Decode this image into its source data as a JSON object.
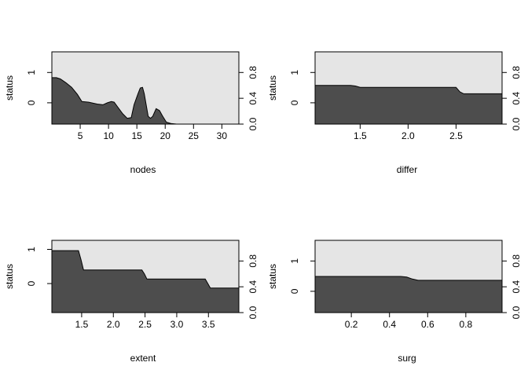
{
  "colors": {
    "background": "#ffffff",
    "panel_fill": "#e5e5e5",
    "area_fill": "#4d4d4d",
    "axis": "#000000"
  },
  "chart_data": [
    {
      "type": "area",
      "xlabel": "nodes",
      "ylabel": "status",
      "xlim": [
        0,
        33
      ],
      "xticks": [
        5,
        10,
        15,
        20,
        25,
        30
      ],
      "ylim": [
        0,
        1.12
      ],
      "left_ticks": [
        0,
        1
      ],
      "left_tick_values": [
        0.33,
        0.8
      ],
      "right_ticks": [
        0.0,
        0.4,
        0.8
      ],
      "x": [
        0,
        0.8,
        1.5,
        2.5,
        3.5,
        4.5,
        5.3,
        6.5,
        8,
        9,
        9.8,
        10.5,
        11,
        11.5,
        12.5,
        13.3,
        14,
        14.5,
        15.2,
        15.6,
        16,
        16.3,
        17,
        17.4,
        17.8,
        18.4,
        19,
        19.5,
        20.2,
        21,
        22,
        33
      ],
      "y": [
        0.72,
        0.72,
        0.7,
        0.64,
        0.57,
        0.46,
        0.35,
        0.34,
        0.31,
        0.3,
        0.33,
        0.35,
        0.34,
        0.28,
        0.16,
        0.09,
        0.1,
        0.3,
        0.47,
        0.56,
        0.57,
        0.47,
        0.12,
        0.09,
        0.12,
        0.24,
        0.21,
        0.13,
        0.03,
        0.01,
        0,
        0
      ]
    },
    {
      "type": "area",
      "xlabel": "differ",
      "ylabel": "status",
      "xlim": [
        1.03,
        2.98
      ],
      "xticks": [
        1.5,
        2.0,
        2.5
      ],
      "ylim": [
        0,
        1.12
      ],
      "left_ticks": [
        0,
        1
      ],
      "left_tick_values": [
        0.33,
        0.8
      ],
      "right_ticks": [
        0.0,
        0.4,
        0.8
      ],
      "x": [
        1.03,
        1.4,
        1.45,
        1.5,
        2.5,
        2.54,
        2.58,
        2.98
      ],
      "y": [
        0.6,
        0.6,
        0.59,
        0.57,
        0.57,
        0.5,
        0.47,
        0.47
      ]
    },
    {
      "type": "area",
      "xlabel": "extent",
      "ylabel": "status",
      "xlim": [
        1.03,
        3.98
      ],
      "xticks": [
        1.5,
        2.0,
        2.5,
        3.0,
        3.5
      ],
      "ylim": [
        0,
        1.12
      ],
      "left_ticks": [
        0,
        1
      ],
      "left_tick_values": [
        0.45,
        0.98
      ],
      "right_ticks": [
        0.0,
        0.4,
        0.8
      ],
      "x": [
        1.03,
        1.45,
        1.49,
        1.53,
        2.45,
        2.49,
        2.53,
        3.45,
        3.49,
        3.53,
        3.98
      ],
      "y": [
        0.96,
        0.96,
        0.82,
        0.66,
        0.66,
        0.6,
        0.52,
        0.52,
        0.45,
        0.38,
        0.38
      ]
    },
    {
      "type": "area",
      "xlabel": "surg",
      "ylabel": "status",
      "xlim": [
        0.01,
        0.99
      ],
      "xticks": [
        0.2,
        0.4,
        0.6,
        0.8
      ],
      "ylim": [
        0,
        1.12
      ],
      "left_ticks": [
        0,
        1
      ],
      "left_tick_values": [
        0.33,
        0.8
      ],
      "right_ticks": [
        0.0,
        0.4,
        0.8
      ],
      "x": [
        0.01,
        0.46,
        0.49,
        0.52,
        0.55,
        0.99
      ],
      "y": [
        0.56,
        0.56,
        0.55,
        0.52,
        0.5,
        0.5
      ]
    }
  ]
}
